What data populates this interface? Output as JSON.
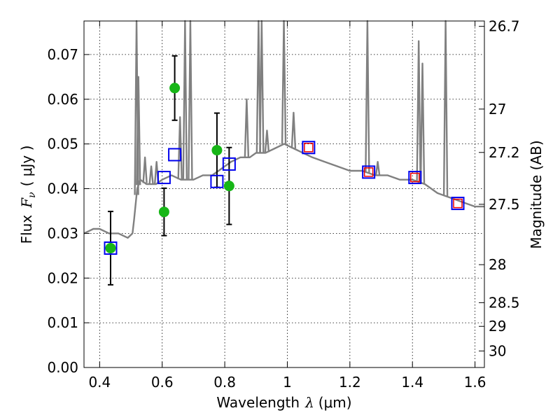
{
  "chart_data": {
    "type": "scatter",
    "xlabel_prefix": "Wavelength",
    "xlabel_symbol": "λ",
    "xlabel_unit": "(μm)",
    "ylabel_prefix": "Flux",
    "ylabel_symbol": "F",
    "ylabel_subscript": "ν",
    "ylabel_unit": "( μJy )",
    "ylabel_right": "Magnitude (AB)",
    "xlim": [
      0.35,
      1.63
    ],
    "ylim": [
      0.0,
      0.0775
    ],
    "grid": true,
    "x_ticks": [
      0.4,
      0.6,
      0.8,
      1.0,
      1.2,
      1.4,
      1.6
    ],
    "x_tick_labels": [
      "0.4",
      "0.6",
      "0.8",
      "1",
      "1.2",
      "1.4",
      "1.6"
    ],
    "y_ticks": [
      0.0,
      0.01,
      0.02,
      0.03,
      0.04,
      0.05,
      0.06,
      0.07
    ],
    "y_tick_labels": [
      "0.00",
      "0.01",
      "0.02",
      "0.03",
      "0.04",
      "0.05",
      "0.06",
      "0.07"
    ],
    "right_ticks": [
      {
        "label": "26.7",
        "flux": 0.0763
      },
      {
        "label": "27",
        "flux": 0.0578
      },
      {
        "label": "27.2",
        "flux": 0.0481
      },
      {
        "label": "27.5",
        "flux": 0.0365
      },
      {
        "label": "28",
        "flux": 0.023
      },
      {
        "label": "28.5",
        "flux": 0.0145
      },
      {
        "label": "29",
        "flux": 0.0092
      },
      {
        "label": "30",
        "flux": 0.0037
      }
    ],
    "colors": {
      "model": "#808080",
      "observed": "#17b617",
      "model_photometry": "#0000ee",
      "upper_limit_box": "#ee0000",
      "errorbar": "#000000"
    },
    "model_spectrum": {
      "x": [
        0.35,
        0.38,
        0.4,
        0.43,
        0.46,
        0.49,
        0.505,
        0.51,
        0.52,
        0.53,
        0.55,
        0.58,
        0.6,
        0.63,
        0.66,
        0.7,
        0.73,
        0.76,
        0.78,
        0.8,
        0.82,
        0.85,
        0.88,
        0.9,
        0.93,
        0.96,
        0.99,
        1.02,
        1.05,
        1.08,
        1.12,
        1.16,
        1.2,
        1.24,
        1.28,
        1.32,
        1.36,
        1.4,
        1.44,
        1.48,
        1.52,
        1.56,
        1.6,
        1.63
      ],
      "y": [
        0.03,
        0.031,
        0.031,
        0.03,
        0.03,
        0.029,
        0.03,
        0.033,
        0.04,
        0.042,
        0.041,
        0.041,
        0.042,
        0.043,
        0.042,
        0.042,
        0.043,
        0.043,
        0.044,
        0.045,
        0.046,
        0.047,
        0.047,
        0.048,
        0.048,
        0.049,
        0.05,
        0.049,
        0.048,
        0.047,
        0.046,
        0.045,
        0.044,
        0.044,
        0.043,
        0.043,
        0.042,
        0.042,
        0.041,
        0.039,
        0.038,
        0.037,
        0.036,
        0.036
      ]
    },
    "emission_lines": [
      {
        "x": 0.518,
        "peak": 0.0775
      },
      {
        "x": 0.524,
        "peak": 0.065
      },
      {
        "x": 0.545,
        "peak": 0.047
      },
      {
        "x": 0.565,
        "peak": 0.045
      },
      {
        "x": 0.582,
        "peak": 0.046
      },
      {
        "x": 0.657,
        "peak": 0.056
      },
      {
        "x": 0.673,
        "peak": 0.0775
      },
      {
        "x": 0.69,
        "peak": 0.0775
      },
      {
        "x": 0.87,
        "peak": 0.06
      },
      {
        "x": 0.908,
        "peak": 0.0775
      },
      {
        "x": 0.918,
        "peak": 0.0775
      },
      {
        "x": 0.935,
        "peak": 0.053
      },
      {
        "x": 0.989,
        "peak": 0.0775
      },
      {
        "x": 1.02,
        "peak": 0.057
      },
      {
        "x": 1.256,
        "peak": 0.0775
      },
      {
        "x": 1.289,
        "peak": 0.046
      },
      {
        "x": 1.42,
        "peak": 0.073
      },
      {
        "x": 1.432,
        "peak": 0.068
      },
      {
        "x": 1.506,
        "peak": 0.0775
      }
    ],
    "observed": [
      {
        "x": 0.435,
        "y": 0.0267,
        "err": 0.0082
      },
      {
        "x": 0.606,
        "y": 0.0348,
        "err": 0.0053
      },
      {
        "x": 0.64,
        "y": 0.0625,
        "err": 0.0072
      },
      {
        "x": 0.775,
        "y": 0.0486,
        "err": 0.0083
      },
      {
        "x": 0.814,
        "y": 0.0406,
        "err": 0.0086
      }
    ],
    "model_photometry": [
      {
        "x": 0.435,
        "y": 0.0267
      },
      {
        "x": 0.606,
        "y": 0.0425
      },
      {
        "x": 0.64,
        "y": 0.0476
      },
      {
        "x": 0.775,
        "y": 0.0416
      },
      {
        "x": 0.814,
        "y": 0.0455
      },
      {
        "x": 1.068,
        "y": 0.0492
      },
      {
        "x": 1.26,
        "y": 0.0437
      },
      {
        "x": 1.408,
        "y": 0.0425
      },
      {
        "x": 1.545,
        "y": 0.0367
      }
    ],
    "upper_limit_boxes": [
      {
        "x": 1.068,
        "y": 0.0492
      },
      {
        "x": 1.26,
        "y": 0.0437
      },
      {
        "x": 1.408,
        "y": 0.0425
      },
      {
        "x": 1.545,
        "y": 0.0367
      }
    ]
  }
}
